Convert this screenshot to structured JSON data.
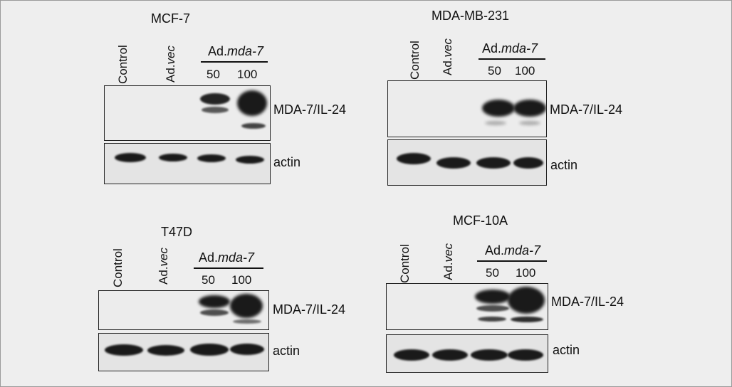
{
  "lanes": {
    "control": "Control",
    "vec_prefix": "Ad.",
    "vec_italic": "vec",
    "group_prefix": "Ad.",
    "group_italic": "mda-7",
    "dose_50": "50",
    "dose_100": "100"
  },
  "bands": {
    "target": "MDA-7/IL-24",
    "loading": "actin"
  },
  "panels": [
    {
      "cell_line": "MCF-7"
    },
    {
      "cell_line": "MDA-MB-231"
    },
    {
      "cell_line": "T47D"
    },
    {
      "cell_line": "MCF-10A"
    }
  ]
}
